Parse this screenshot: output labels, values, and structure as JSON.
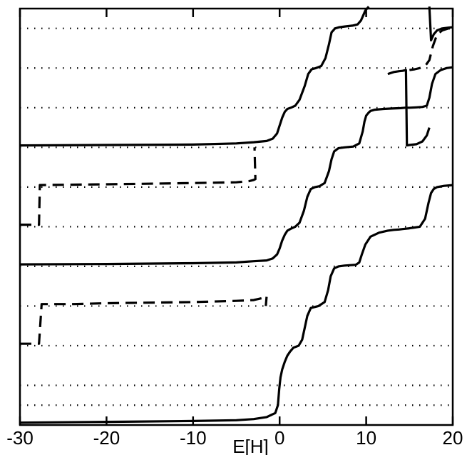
{
  "chart_data": {
    "type": "line",
    "title": "",
    "xlabel": "E[H]",
    "ylabel": "",
    "xlim": [
      -30,
      20
    ],
    "x_ticks": [
      -30,
      -20,
      -10,
      0,
      10,
      20
    ],
    "x_tick_labels": [
      "-30",
      "-20",
      "-10",
      "0",
      "10",
      "20"
    ],
    "y_ticks_shown": false,
    "grid": "horizontal-dotted",
    "ylim": [
      0,
      10.5
    ],
    "gridlines": [
      0.5,
      1,
      2,
      3,
      4,
      5,
      6,
      7,
      8,
      9,
      10
    ],
    "legend": "none",
    "series": [
      {
        "style": "solid",
        "x": [
          -30,
          -20,
          -10,
          -5,
          -3,
          -1.5,
          -0.5,
          -0.2,
          -0.05,
          0.1,
          0.3,
          0.6,
          0.9,
          1.2,
          1.6,
          2.2,
          2.6,
          2.9,
          3.2,
          3.6,
          4.5,
          5.2,
          5.6,
          5.9,
          6.3,
          6.8,
          7.5,
          8.2,
          8.8,
          9.2,
          9.5,
          9.9,
          10.5,
          11.5,
          12.5,
          13.2,
          13.8,
          14.2,
          14.6,
          15.0,
          15.6,
          16.2,
          16.8,
          17.2,
          17.5,
          17.8,
          18.2,
          19,
          20
        ],
        "y": [
          0.06,
          0.08,
          0.1,
          0.12,
          0.15,
          0.2,
          0.3,
          0.5,
          0.9,
          1.2,
          1.4,
          1.6,
          1.75,
          1.85,
          1.95,
          2.0,
          2.15,
          2.45,
          2.75,
          2.95,
          3.0,
          3.1,
          3.4,
          3.75,
          3.95,
          4.0,
          4.02,
          4.03,
          4.04,
          4.1,
          4.3,
          4.55,
          4.75,
          4.85,
          4.9,
          4.92,
          4.93,
          4.94,
          4.95,
          4.96,
          4.98,
          5.0,
          5.2,
          5.6,
          5.85,
          5.95,
          6.0,
          6.03,
          6.05
        ]
      },
      {
        "style": "dashed",
        "x": [
          -30,
          -28,
          -27.8,
          -27.5,
          -24,
          -23.8,
          -20,
          -10,
          -5,
          -3,
          -2,
          -1.5,
          -1.6
        ],
        "y": [
          2.05,
          2.05,
          2.05,
          3.05,
          3.05,
          3.05,
          3.07,
          3.1,
          3.13,
          3.15,
          3.2,
          3.25,
          3.0
        ]
      },
      {
        "style": "solid",
        "x": [
          -30,
          -20,
          -10,
          -5,
          -3,
          -1.5,
          -0.8,
          -0.3,
          0,
          0.3,
          0.6,
          0.9,
          1.3,
          1.8,
          2.3,
          2.8,
          3.2,
          3.6,
          4.1,
          4.6,
          5.2,
          5.7,
          6.0,
          6.3,
          6.8,
          7.5,
          8.5,
          9.2,
          9.6,
          9.8,
          10.0,
          10.3,
          10.5,
          11,
          12,
          13,
          14,
          14.5,
          14.7,
          15,
          15.8,
          16.5,
          17.0,
          17.3,
          17.6,
          18.0,
          18.6,
          19.3,
          20
        ],
        "y": [
          4.05,
          4.06,
          4.08,
          4.1,
          4.13,
          4.15,
          4.2,
          4.3,
          4.45,
          4.65,
          4.8,
          4.9,
          4.95,
          5.0,
          5.1,
          5.4,
          5.75,
          5.95,
          6.0,
          6.02,
          6.1,
          6.4,
          6.7,
          6.9,
          6.98,
          7.0,
          7.02,
          7.1,
          7.4,
          7.65,
          7.8,
          7.88,
          7.92,
          7.95,
          7.97,
          7.98,
          7.99,
          8.0,
          8.0,
          8.0,
          8.01,
          8.02,
          8.05,
          8.25,
          8.6,
          8.85,
          8.95,
          9.0,
          9.02
        ]
      },
      {
        "style": "dashed",
        "x": [
          -30,
          -28,
          -27.8,
          -27.7,
          -20,
          -10,
          -5,
          -3.5,
          -3,
          -2.8,
          -2.9
        ],
        "y": [
          5.05,
          5.05,
          5.05,
          6.05,
          6.07,
          6.1,
          6.12,
          6.15,
          6.18,
          6.2,
          7.0
        ]
      },
      {
        "style": "solid",
        "x": [
          -30,
          -20,
          -10,
          -5,
          -3,
          -1.5,
          -0.8,
          -0.3,
          0,
          0.3,
          0.6,
          0.9,
          1.3,
          1.8,
          2.3,
          2.9,
          3.3,
          3.7,
          4.2,
          4.8,
          5.3,
          5.7,
          6.0,
          6.4,
          6.9,
          7.6,
          8.4,
          9.0,
          9.4,
          9.7,
          9.9,
          10.1,
          10.3
        ],
        "y": [
          7.05,
          7.06,
          7.07,
          7.1,
          7.13,
          7.16,
          7.22,
          7.35,
          7.55,
          7.75,
          7.9,
          7.97,
          8.0,
          8.05,
          8.2,
          8.55,
          8.85,
          8.97,
          9.0,
          9.05,
          9.25,
          9.6,
          9.9,
          10.0,
          10.03,
          10.05,
          10.07,
          10.1,
          10.2,
          10.35,
          10.45,
          10.5,
          10.55
        ]
      },
      {
        "style": "solid",
        "x": [
          12.5,
          13.2,
          13.8,
          14.2,
          14.6,
          14.7,
          15.0,
          15.8,
          16.5,
          17.0,
          17.3
        ],
        "y": [
          8.85,
          8.9,
          8.92,
          8.93,
          8.95,
          7.05,
          7.06,
          7.08,
          7.15,
          7.3,
          7.5
        ]
      },
      {
        "style": "solid",
        "x": [
          17.3,
          17.5,
          17.8,
          18.2,
          18.8,
          19.5,
          20
        ],
        "y": [
          10.55,
          9.7,
          9.85,
          9.95,
          10.0,
          10.02,
          10.03
        ]
      },
      {
        "style": "dashed",
        "x": [
          15.0,
          15.6,
          16.2,
          16.8,
          17.3,
          17.7,
          18.2,
          18.8,
          19.5,
          20
        ],
        "y": [
          8.95,
          8.97,
          9.0,
          9.05,
          9.2,
          9.55,
          9.85,
          9.95,
          10.0,
          10.0
        ]
      }
    ]
  }
}
